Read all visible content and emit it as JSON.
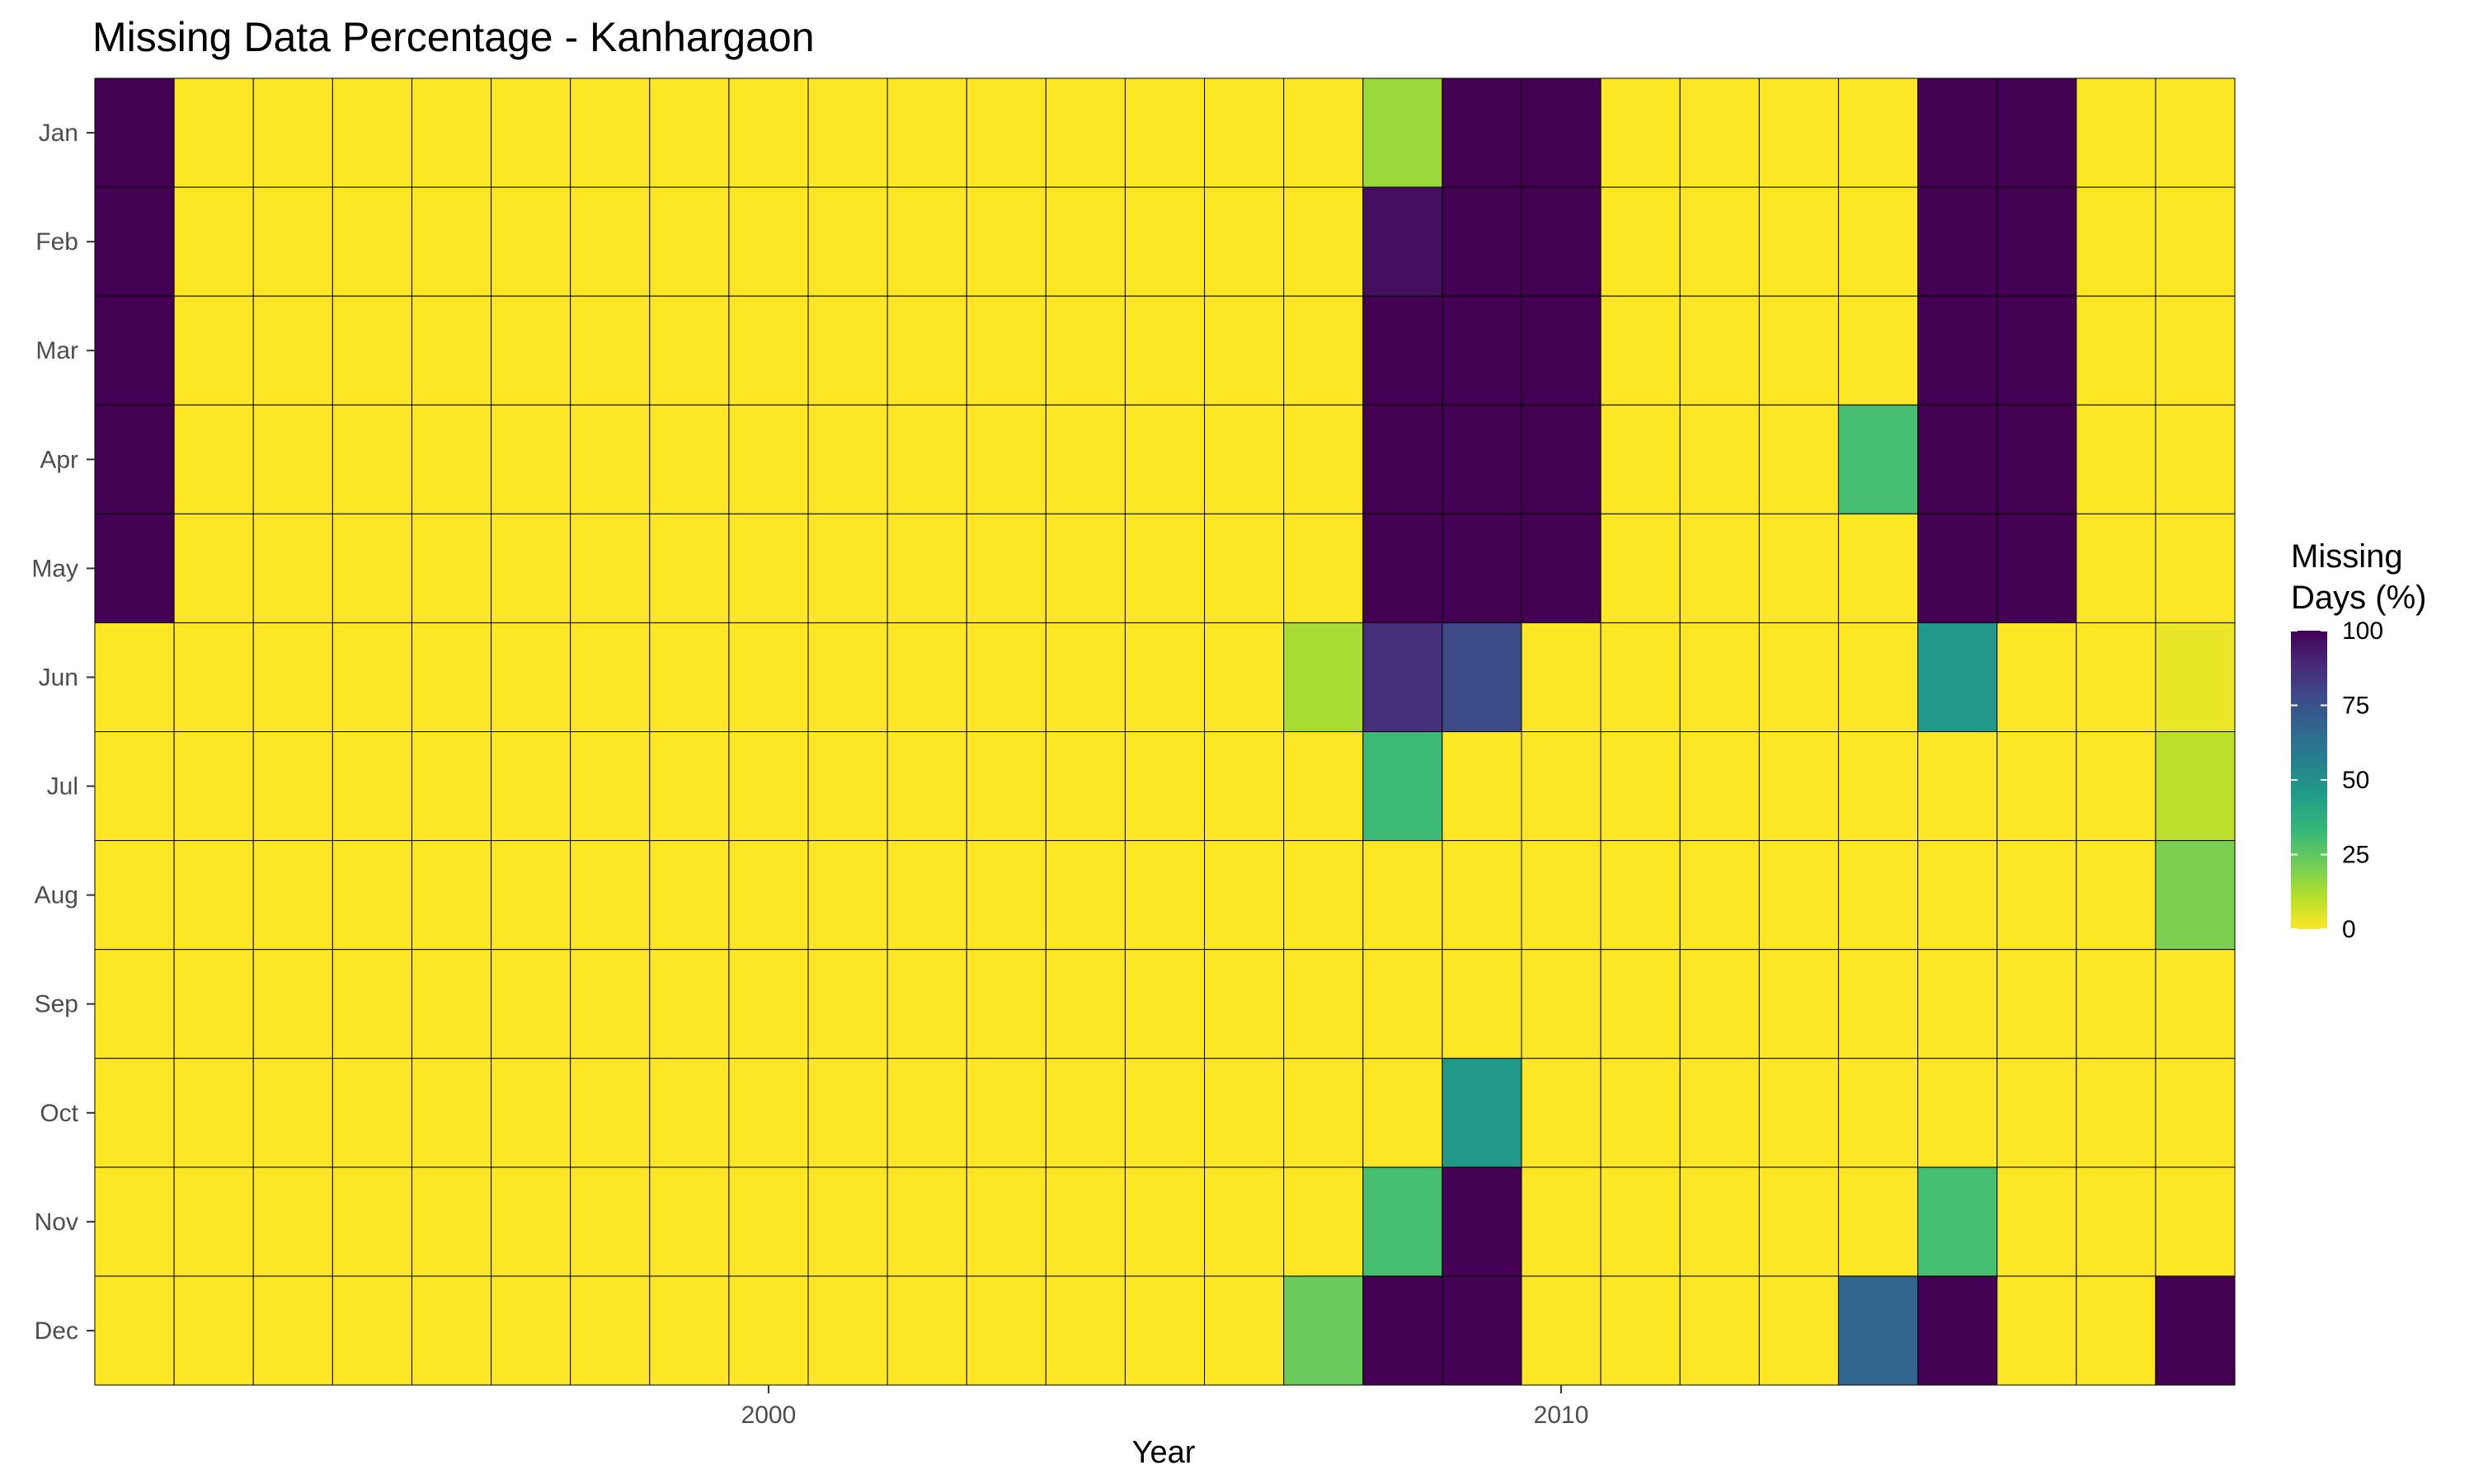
{
  "chart_data": {
    "type": "heatmap",
    "title": "Missing Data Percentage - Kanhargaon",
    "xlabel": "Year",
    "ylabel": "",
    "x": [
      1992,
      1993,
      1994,
      1995,
      1996,
      1997,
      1998,
      1999,
      2000,
      2001,
      2002,
      2003,
      2004,
      2005,
      2006,
      2007,
      2008,
      2009,
      2010,
      2011,
      2012,
      2013,
      2014,
      2015,
      2016,
      2017,
      2018
    ],
    "x_ticks": [
      2000,
      2010
    ],
    "y": [
      "Jan",
      "Feb",
      "Mar",
      "Apr",
      "May",
      "Jun",
      "Jul",
      "Aug",
      "Sep",
      "Oct",
      "Nov",
      "Dec"
    ],
    "values": [
      [
        100,
        0,
        0,
        0,
        0,
        0,
        0,
        0,
        0,
        0,
        0,
        0,
        0,
        0,
        0,
        0,
        15,
        100,
        100,
        0,
        0,
        0,
        0,
        100,
        100,
        0,
        0
      ],
      [
        100,
        0,
        0,
        0,
        0,
        0,
        0,
        0,
        0,
        0,
        0,
        0,
        0,
        0,
        0,
        0,
        96,
        100,
        100,
        0,
        0,
        0,
        0,
        100,
        100,
        0,
        0
      ],
      [
        100,
        0,
        0,
        0,
        0,
        0,
        0,
        0,
        0,
        0,
        0,
        0,
        0,
        0,
        0,
        0,
        100,
        100,
        100,
        0,
        0,
        0,
        0,
        100,
        100,
        0,
        0
      ],
      [
        100,
        0,
        0,
        0,
        0,
        0,
        0,
        0,
        0,
        0,
        0,
        0,
        0,
        0,
        0,
        0,
        100,
        100,
        100,
        0,
        0,
        0,
        30,
        100,
        100,
        0,
        0
      ],
      [
        100,
        0,
        0,
        0,
        0,
        0,
        0,
        0,
        0,
        0,
        0,
        0,
        0,
        0,
        0,
        0,
        100,
        100,
        100,
        0,
        0,
        0,
        0,
        100,
        100,
        0,
        0
      ],
      [
        0,
        0,
        0,
        0,
        0,
        0,
        0,
        0,
        0,
        0,
        0,
        0,
        0,
        0,
        0,
        13,
        87,
        77,
        0,
        0,
        0,
        0,
        0,
        47,
        0,
        0,
        3
      ],
      [
        0,
        0,
        0,
        0,
        0,
        0,
        0,
        0,
        0,
        0,
        0,
        0,
        0,
        0,
        0,
        0,
        32,
        0,
        0,
        0,
        0,
        0,
        0,
        0,
        0,
        0,
        10
      ],
      [
        0,
        0,
        0,
        0,
        0,
        0,
        0,
        0,
        0,
        0,
        0,
        0,
        0,
        0,
        0,
        0,
        0,
        0,
        0,
        0,
        0,
        0,
        0,
        0,
        0,
        0,
        20
      ],
      [
        0,
        0,
        0,
        0,
        0,
        0,
        0,
        0,
        0,
        0,
        0,
        0,
        0,
        0,
        0,
        0,
        0,
        0,
        0,
        0,
        0,
        0,
        0,
        0,
        0,
        0,
        0
      ],
      [
        0,
        0,
        0,
        0,
        0,
        0,
        0,
        0,
        0,
        0,
        0,
        0,
        0,
        0,
        0,
        0,
        0,
        47,
        0,
        0,
        0,
        0,
        0,
        0,
        0,
        0,
        0
      ],
      [
        0,
        0,
        0,
        0,
        0,
        0,
        0,
        0,
        0,
        0,
        0,
        0,
        0,
        0,
        0,
        0,
        30,
        100,
        0,
        0,
        0,
        0,
        0,
        30,
        0,
        0,
        0
      ],
      [
        0,
        0,
        0,
        0,
        0,
        0,
        0,
        0,
        0,
        0,
        0,
        0,
        0,
        0,
        0,
        23,
        100,
        100,
        0,
        0,
        0,
        0,
        67,
        100,
        0,
        0,
        100
      ]
    ],
    "color_range": [
      0,
      100
    ],
    "legend": {
      "title_line1": "Missing",
      "title_line2": "Days (%)",
      "ticks": [
        0,
        25,
        50,
        75,
        100
      ],
      "placement": "right"
    },
    "colormap": "viridis-reversed",
    "colors": [
      "#FDE725",
      "#B4DE2C",
      "#6DCD59",
      "#35B779",
      "#1F9E89",
      "#26828E",
      "#31688E",
      "#3E4A89",
      "#482878",
      "#440154"
    ]
  }
}
